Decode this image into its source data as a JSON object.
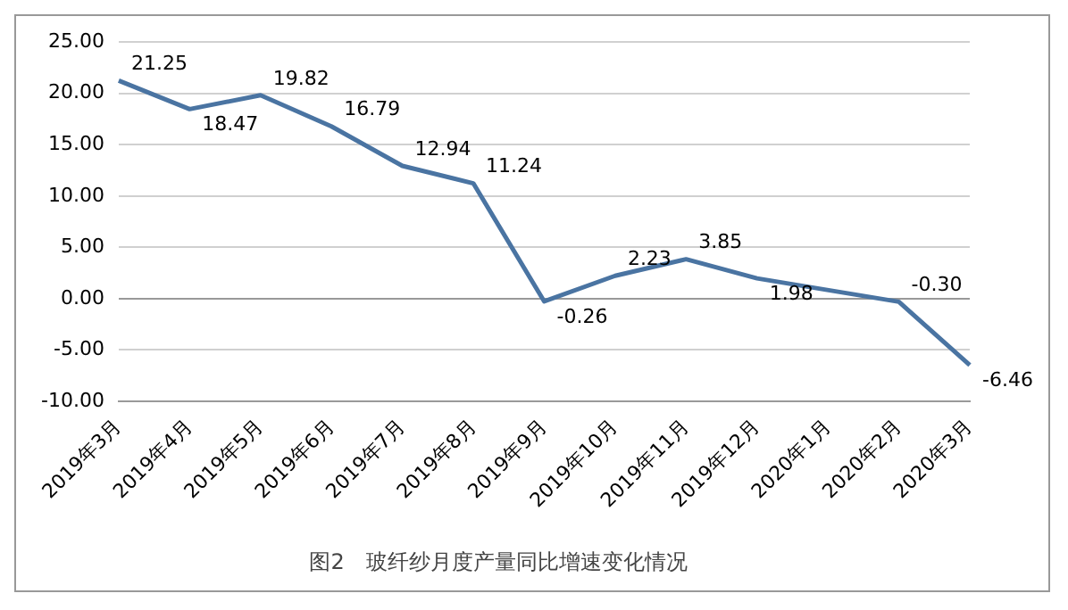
{
  "chart_data": {
    "type": "line",
    "title": "图2　玻纤纱月度产量同比增速变化情况",
    "categories": [
      "2019年3月",
      "2019年4月",
      "2019年5月",
      "2019年6月",
      "2019年7月",
      "2019年8月",
      "2019年9月",
      "2019年10月",
      "2019年11月",
      "2019年12月",
      "2020年1月",
      "2020年2月",
      "2020年3月"
    ],
    "series": [
      {
        "color": "#4a74a2",
        "values": [
          21.25,
          18.47,
          19.82,
          16.79,
          12.94,
          11.24,
          -0.26,
          2.23,
          3.85,
          1.98,
          null,
          -0.3,
          -6.46
        ],
        "value_labels": [
          "21.25",
          "18.47",
          "19.82",
          "16.79",
          "12.94",
          "11.24",
          "-0.26",
          "2.23",
          "3.85",
          "1.98",
          null,
          "-0.30",
          "-6.46"
        ]
      }
    ],
    "ylim": [
      -10,
      25
    ],
    "yticks": [
      {
        "value": -10,
        "label": "-10.00"
      },
      {
        "value": -5,
        "label": "-5.00"
      },
      {
        "value": 0,
        "label": "0.00"
      },
      {
        "value": 5,
        "label": "5.00"
      },
      {
        "value": 10,
        "label": "10.00"
      },
      {
        "value": 15,
        "label": "15.00"
      },
      {
        "value": 20,
        "label": "20.00"
      },
      {
        "value": 25,
        "label": "25.00"
      }
    ],
    "grid": "y",
    "marker": "none",
    "line_style": "solid",
    "legend": false
  }
}
